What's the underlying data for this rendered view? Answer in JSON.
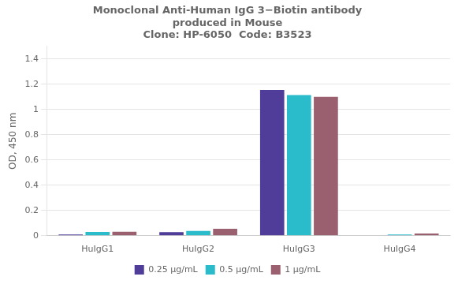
{
  "chart_data": {
    "type": "bar",
    "title": "Monoclonal Anti-Human IgG 3−Biotin antibody\nproduced in Mouse\nClone: HP-6050  Code: B3523",
    "categories": [
      "HuIgG1",
      "HuIgG2",
      "HuIgG3",
      "HuIgG4"
    ],
    "series": [
      {
        "name": "0.25 µg/mL",
        "color": "#4f3d99",
        "values": [
          0.01,
          0.028,
          1.155,
          0.003
        ]
      },
      {
        "name": "0.5 µg/mL",
        "color": "#2bbccc",
        "values": [
          0.03,
          0.038,
          1.115,
          0.01
        ]
      },
      {
        "name": "1 µg/mL",
        "color": "#9b6070",
        "values": [
          0.032,
          0.055,
          1.1,
          0.018
        ]
      }
    ],
    "y_label": "OD, 450 nm",
    "ylim": [
      0,
      1.5
    ],
    "yticks": [
      0,
      0.2,
      0.4,
      0.6,
      0.8,
      1,
      1.2,
      1.4
    ],
    "grid": true,
    "legend": "bottom"
  }
}
